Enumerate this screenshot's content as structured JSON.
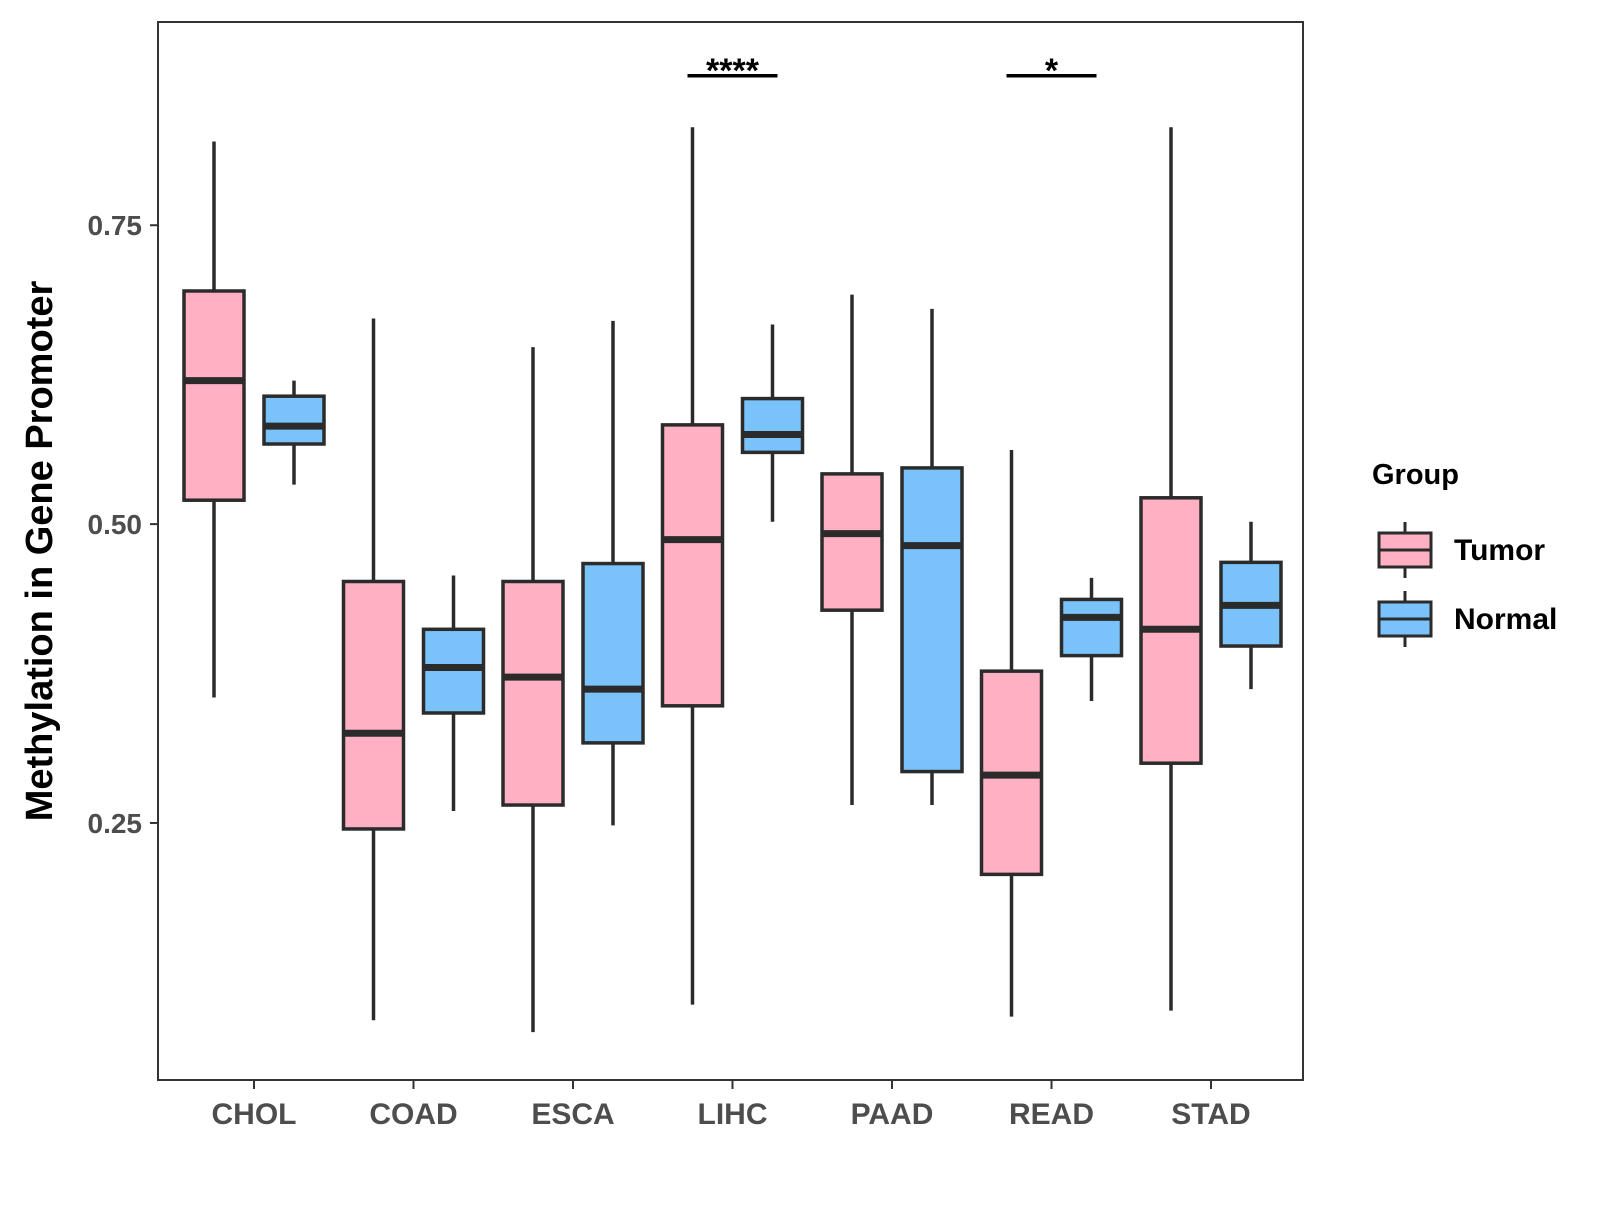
{
  "chart_data": {
    "type": "boxplot",
    "title": "",
    "xlabel": "",
    "ylabel": "Methylation in Gene Promoter",
    "ylim": [
      0.035,
      0.92
    ],
    "yticks": [
      0.25,
      0.5,
      0.75
    ],
    "ytick_labels": [
      "0.25",
      "0.50",
      "0.75"
    ],
    "grid": false,
    "categories": [
      "CHOL",
      "COAD",
      "ESCA",
      "LIHC",
      "PAAD",
      "READ",
      "STAD"
    ],
    "legend": {
      "title": "Group",
      "position": "right"
    },
    "series": [
      {
        "name": "Tumor",
        "color": "#FFB0C3",
        "boxes": [
          {
            "category": "CHOL",
            "whisker_low": 0.355,
            "q1": 0.52,
            "median": 0.62,
            "q3": 0.695,
            "whisker_high": 0.82
          },
          {
            "category": "COAD",
            "whisker_low": 0.085,
            "q1": 0.245,
            "median": 0.325,
            "q3": 0.452,
            "whisker_high": 0.672
          },
          {
            "category": "ESCA",
            "whisker_low": 0.075,
            "q1": 0.265,
            "median": 0.372,
            "q3": 0.452,
            "whisker_high": 0.648
          },
          {
            "category": "LIHC",
            "whisker_low": 0.098,
            "q1": 0.348,
            "median": 0.487,
            "q3": 0.583,
            "whisker_high": 0.832
          },
          {
            "category": "PAAD",
            "whisker_low": 0.265,
            "q1": 0.428,
            "median": 0.492,
            "q3": 0.542,
            "whisker_high": 0.692
          },
          {
            "category": "READ",
            "whisker_low": 0.088,
            "q1": 0.207,
            "median": 0.29,
            "q3": 0.377,
            "whisker_high": 0.562
          },
          {
            "category": "STAD",
            "whisker_low": 0.093,
            "q1": 0.3,
            "median": 0.412,
            "q3": 0.522,
            "whisker_high": 0.832
          }
        ]
      },
      {
        "name": "Normal",
        "color": "#79C2FA",
        "boxes": [
          {
            "category": "CHOL",
            "whisker_low": 0.533,
            "q1": 0.567,
            "median": 0.582,
            "q3": 0.607,
            "whisker_high": 0.62
          },
          {
            "category": "COAD",
            "whisker_low": 0.26,
            "q1": 0.342,
            "median": 0.38,
            "q3": 0.412,
            "whisker_high": 0.457
          },
          {
            "category": "ESCA",
            "whisker_low": 0.248,
            "q1": 0.317,
            "median": 0.362,
            "q3": 0.467,
            "whisker_high": 0.67
          },
          {
            "category": "LIHC",
            "whisker_low": 0.502,
            "q1": 0.56,
            "median": 0.575,
            "q3": 0.605,
            "whisker_high": 0.667
          },
          {
            "category": "PAAD",
            "whisker_low": 0.265,
            "q1": 0.293,
            "median": 0.482,
            "q3": 0.547,
            "whisker_high": 0.68
          },
          {
            "category": "READ",
            "whisker_low": 0.352,
            "q1": 0.39,
            "median": 0.422,
            "q3": 0.437,
            "whisker_high": 0.455
          },
          {
            "category": "STAD",
            "whisker_low": 0.362,
            "q1": 0.398,
            "median": 0.432,
            "q3": 0.468,
            "whisker_high": 0.502
          }
        ]
      }
    ],
    "annotations": [
      {
        "category": "LIHC",
        "label": "****",
        "y": 0.875
      },
      {
        "category": "READ",
        "label": "*",
        "y": 0.875
      }
    ]
  }
}
